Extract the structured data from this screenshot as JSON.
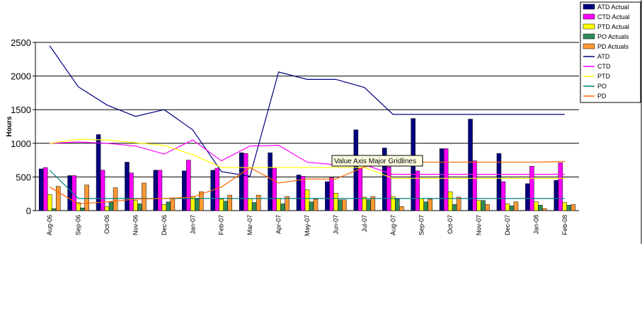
{
  "chart_data": {
    "type": "bar",
    "y_label": "Hours",
    "tooltip": "Value Axis Major Gridlines",
    "categories": [
      "Aug-06",
      "Sep-06",
      "Oct-06",
      "Nov-06",
      "Dec-06",
      "Jan-07",
      "Feb-07",
      "Mar-07",
      "Apr-07",
      "May-07",
      "Jun-07",
      "Jul-07",
      "Aug-07",
      "Sep-07",
      "Oct-07",
      "Nov-07",
      "Dec-07",
      "Jan-08",
      "Feb-08"
    ],
    "ylim": [
      0,
      2500
    ],
    "yticks": [
      0,
      500,
      1000,
      1500,
      2000,
      2500
    ],
    "grid": true,
    "series": [
      {
        "name": "ATD Actual",
        "kind": "bar",
        "color": "#000080",
        "values": [
          620,
          520,
          1130,
          720,
          600,
          590,
          600,
          860,
          860,
          530,
          430,
          1200,
          930,
          1370,
          920,
          1360,
          850,
          400,
          450
        ]
      },
      {
        "name": "CTD Actual",
        "kind": "bar",
        "color": "#ff00ff",
        "values": [
          640,
          520,
          600,
          560,
          600,
          750,
          630,
          850,
          630,
          510,
          490,
          630,
          650,
          590,
          920,
          740,
          430,
          660,
          710
        ]
      },
      {
        "name": "PTD Actual",
        "kind": "bar",
        "color": "#ffff00",
        "values": [
          240,
          120,
          60,
          150,
          90,
          210,
          170,
          180,
          180,
          310,
          260,
          200,
          210,
          180,
          280,
          150,
          100,
          130,
          120
        ]
      },
      {
        "name": "PO Actuals",
        "kind": "bar",
        "color": "#2e8b57",
        "values": [
          30,
          40,
          130,
          100,
          130,
          170,
          140,
          120,
          100,
          130,
          160,
          160,
          170,
          130,
          90,
          150,
          70,
          80,
          80
        ]
      },
      {
        "name": "PD Actuals",
        "kind": "bar",
        "color": "#ff9933",
        "values": [
          360,
          380,
          340,
          410,
          190,
          280,
          230,
          230,
          210,
          170,
          160,
          210,
          60,
          170,
          200,
          90,
          130,
          30,
          90
        ]
      },
      {
        "name": "ATD",
        "kind": "line",
        "color": "#000080",
        "values": [
          2450,
          1840,
          1570,
          1400,
          1500,
          1200,
          580,
          510,
          2060,
          1950,
          1950,
          1830,
          1430,
          1430,
          1430,
          1430,
          1430,
          1430,
          1430
        ]
      },
      {
        "name": "CTD",
        "kind": "line",
        "color": "#ff00ff",
        "values": [
          1000,
          1020,
          1000,
          960,
          840,
          1050,
          740,
          960,
          970,
          720,
          680,
          680,
          540,
          540,
          540,
          540,
          540,
          540,
          540
        ]
      },
      {
        "name": "PTD",
        "kind": "line",
        "color": "#ffff00",
        "values": [
          1000,
          1060,
          1050,
          1010,
          970,
          830,
          640,
          640,
          640,
          640,
          640,
          640,
          480,
          480,
          480,
          480,
          480,
          480,
          480
        ]
      },
      {
        "name": "PO",
        "kind": "line",
        "color": "#008080",
        "values": [
          600,
          180,
          180,
          180,
          180,
          180,
          180,
          180,
          180,
          180,
          180,
          180,
          180,
          180,
          180,
          180,
          180,
          180,
          180
        ]
      },
      {
        "name": "PD",
        "kind": "line",
        "color": "#ff6600",
        "values": [
          350,
          100,
          130,
          170,
          180,
          200,
          350,
          640,
          410,
          470,
          470,
          650,
          720,
          720,
          720,
          720,
          720,
          720,
          730
        ]
      }
    ]
  }
}
